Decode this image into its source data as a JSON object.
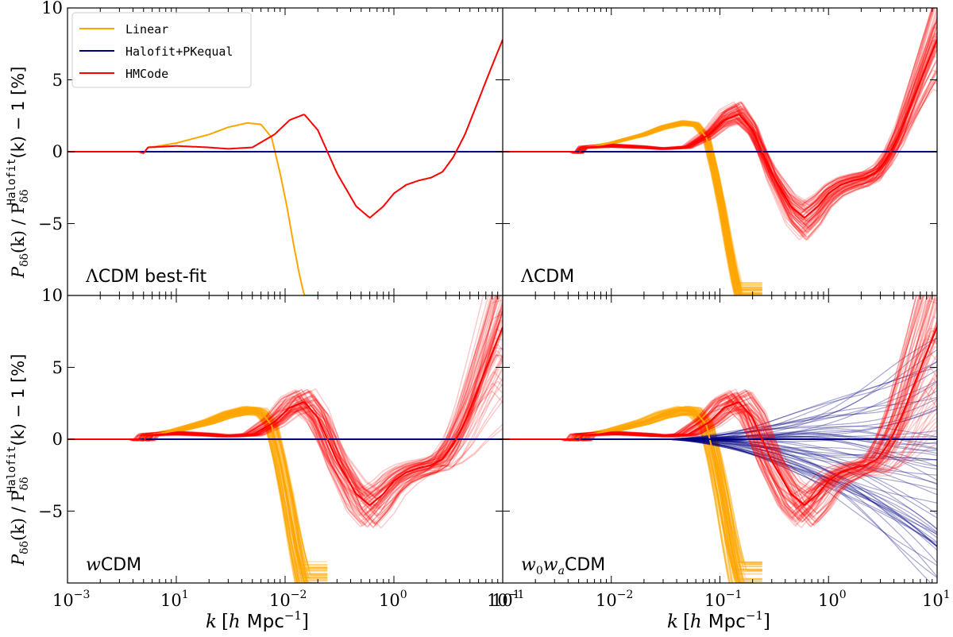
{
  "legend": {
    "placement": "top-left",
    "entries": [
      {
        "label": "Linear",
        "color": "#ffa500"
      },
      {
        "label": "Halofit+PKequal",
        "color": "#000080"
      },
      {
        "label": "HMCode",
        "color": "#ff0000"
      }
    ]
  },
  "ylabel": {
    "a": "P",
    "a_sub": "δδ",
    "b": "(k) / P",
    "b_sub": "δδ",
    "b_sup": "Halofit",
    "c": "(k) − 1 [%]"
  },
  "xlabel": {
    "k": "k",
    "bracket_open": "[",
    "h": "h",
    "units": "Mpc",
    "exp": "−1",
    "bracket_close": "]"
  },
  "xticks": [
    "10",
    "10",
    "10",
    "10",
    "10"
  ],
  "xtick_exps": [
    "−3",
    "−2",
    "−1",
    "0",
    "1"
  ],
  "xticks_right": [
    "10",
    "10",
    "10",
    "10",
    "10"
  ],
  "xtick_exps_right": [
    "1",
    "−2",
    "−1",
    "0",
    "1"
  ],
  "yticks_top": [
    "10",
    "5",
    "0",
    "−5"
  ],
  "yticks_bottom": [
    "10",
    "5",
    "0",
    "−5"
  ],
  "panels": [
    {
      "label_math": "Λ",
      "label_text": "CDM best-fit",
      "var": ""
    },
    {
      "label_math": "Λ",
      "label_text": "CDM",
      "var": ""
    },
    {
      "label_math": "w",
      "label_text": "CDM",
      "var": ""
    },
    {
      "label_math": "w",
      "label_sub0": "0",
      "label_math2": "w",
      "label_sub1": "a",
      "label_text": "CDM"
    }
  ],
  "chart_data": {
    "type": "line",
    "x_scale": "log",
    "xlim": [
      0.001,
      10
    ],
    "ylim": [
      -10,
      10
    ],
    "grid": false,
    "series": [
      {
        "name": "Linear",
        "color": "#ffa500",
        "k": [
          0.001,
          0.0045,
          0.005,
          0.0055,
          0.007,
          0.01,
          0.02,
          0.03,
          0.045,
          0.06,
          0.075,
          0.09,
          0.105,
          0.12,
          0.135,
          0.15
        ],
        "y": [
          0,
          0,
          -0.1,
          0.3,
          0.4,
          0.6,
          1.2,
          1.7,
          2.0,
          1.9,
          1.0,
          -1.5,
          -4.0,
          -6.5,
          -8.5,
          -10
        ]
      },
      {
        "name": "Halofit+PKequal",
        "color": "#000080",
        "k": [
          0.001,
          10
        ],
        "y": [
          0,
          0
        ]
      },
      {
        "name": "HMCode",
        "color": "#ff0000",
        "k": [
          0.001,
          0.0045,
          0.005,
          0.0055,
          0.01,
          0.02,
          0.03,
          0.05,
          0.08,
          0.11,
          0.15,
          0.2,
          0.3,
          0.45,
          0.6,
          0.8,
          1.0,
          1.3,
          1.7,
          2.2,
          2.8,
          3.5,
          4.5,
          6.0,
          8.0,
          10.0
        ],
        "y": [
          0,
          0,
          -0.1,
          0.3,
          0.4,
          0.3,
          0.2,
          0.3,
          1.2,
          2.2,
          2.6,
          1.5,
          -1.5,
          -3.8,
          -4.6,
          -3.8,
          -2.9,
          -2.3,
          -2.0,
          -1.8,
          -1.4,
          -0.4,
          1.2,
          3.6,
          6.0,
          7.8
        ]
      }
    ]
  }
}
